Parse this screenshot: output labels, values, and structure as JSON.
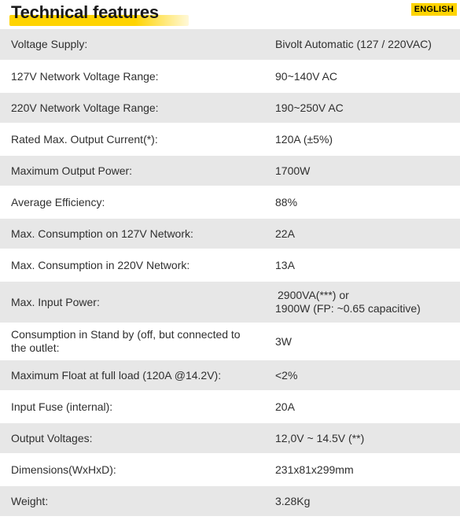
{
  "header": {
    "title": "Technical features",
    "language_badge": "ENGLISH"
  },
  "specs": [
    {
      "label": "Voltage Supply:",
      "value": "Bivolt Automatic (127 / 220VAC)"
    },
    {
      "label": "127V Network Voltage Range:",
      "value": "90~140V AC"
    },
    {
      "label": "220V Network Voltage Range:",
      "value": "190~250V AC"
    },
    {
      "label": "Rated Max. Output Current(*):",
      "value": "120A (±5%)"
    },
    {
      "label": "Maximum Output Power:",
      "value": "1700W"
    },
    {
      "label": "Average Efficiency:",
      "value": "88%"
    },
    {
      "label": "Max. Consumption on 127V Network:",
      "value": "22A"
    },
    {
      "label": "Max. Consumption in 220V Network:",
      "value": "13A"
    },
    {
      "label": "Max. Input Power:",
      "value": "2900VA(***) or",
      "value_line2": "1900W (FP: ~0.65 capacitive)"
    },
    {
      "label": "Consumption in Stand by (off, but connected to",
      "label_line2": "the outlet:",
      "value": "3W"
    },
    {
      "label": "Maximum Float at full load (120A @14.2V):",
      "value": "<2%"
    },
    {
      "label": "Input Fuse (internal):",
      "value": "20A"
    },
    {
      "label": "Output Voltages:",
      "value": "12,0V ~ 14.5V (**)"
    },
    {
      "label": "Dimensions(WxHxD):",
      "value": "231x81x299mm"
    },
    {
      "label": "Weight:",
      "value": "3.28Kg"
    }
  ]
}
